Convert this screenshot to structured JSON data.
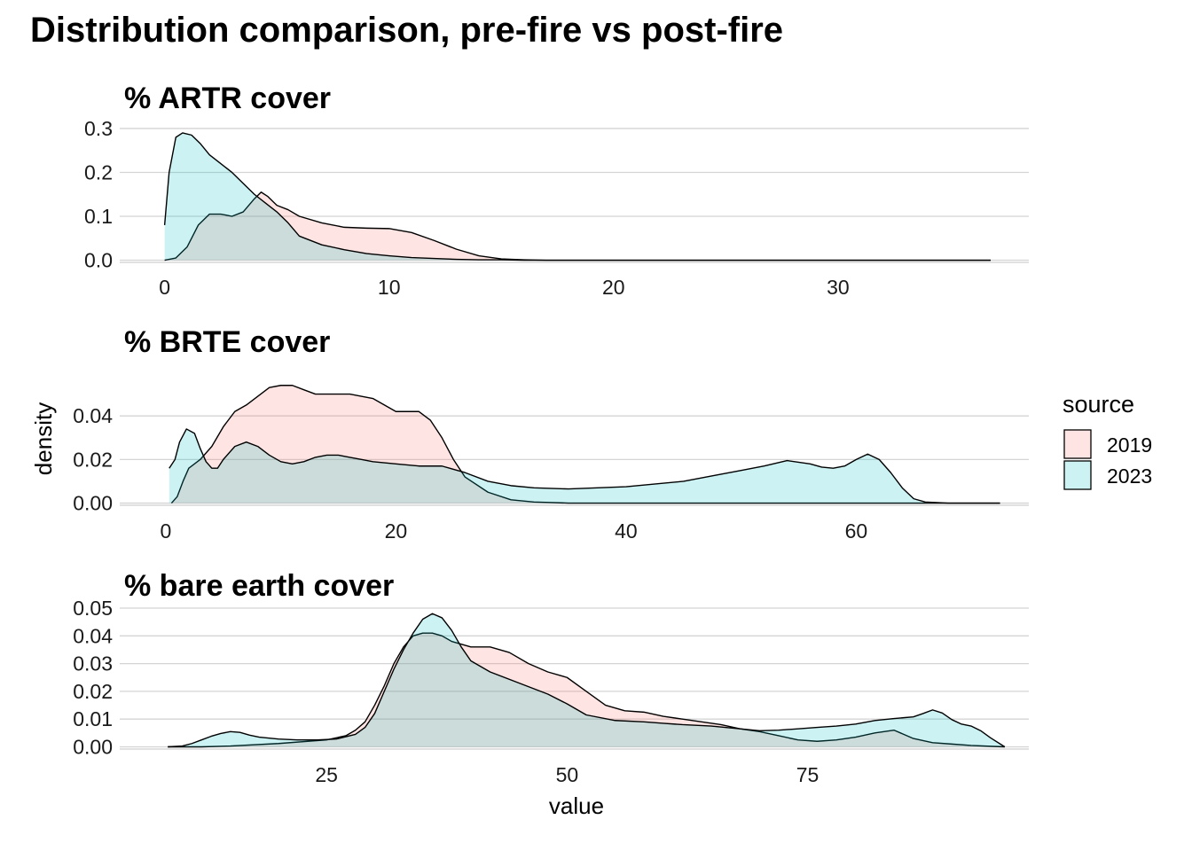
{
  "title": "Distribution comparison, pre-fire vs post-fire",
  "chart_data": {
    "type": "area",
    "title": "Distribution comparison, pre-fire vs post-fire",
    "ylabel": "density",
    "xlabel": "value",
    "legend": {
      "title": "source",
      "placement": "right",
      "entries": [
        {
          "name": "2019",
          "color": "#F8766D"
        },
        {
          "name": "2023",
          "color": "#00BFC4"
        }
      ]
    },
    "fill_opacity": 0.2,
    "grid": true,
    "panels": [
      {
        "title": "% ARTR cover",
        "xlim": [
          -2,
          38.5
        ],
        "ylim": [
          -0.005,
          0.31
        ],
        "xticks": [
          0,
          10,
          20,
          30
        ],
        "xtick_labels": [
          "0",
          "10",
          "20",
          "30"
        ],
        "yticks": [
          0,
          0.1,
          0.2,
          0.3
        ],
        "ytick_labels": [
          "0.0",
          "0.1",
          "0.2",
          "0.3"
        ],
        "series": [
          {
            "name": "2019",
            "x": [
              0,
              0.5,
              1,
              1.5,
              2,
              2.5,
              3,
              3.5,
              4,
              4.3,
              4.6,
              5,
              5.5,
              6,
              7,
              8,
              9,
              10,
              11,
              12,
              13,
              14,
              15,
              16,
              17,
              20,
              25,
              30,
              36.8
            ],
            "y": [
              0,
              0.005,
              0.03,
              0.08,
              0.105,
              0.105,
              0.1,
              0.11,
              0.14,
              0.155,
              0.145,
              0.125,
              0.115,
              0.1,
              0.085,
              0.075,
              0.073,
              0.072,
              0.063,
              0.045,
              0.025,
              0.01,
              0.003,
              0.001,
              0,
              0,
              0,
              0,
              0
            ]
          },
          {
            "name": "2023",
            "x": [
              0,
              0.2,
              0.5,
              0.8,
              1.2,
              1.6,
              2,
              2.5,
              3,
              3.5,
              4,
              4.5,
              5,
              5.5,
              6,
              7,
              8,
              9,
              10,
              11,
              12,
              13,
              14,
              15,
              16,
              20,
              25,
              30,
              36.8
            ],
            "y": [
              0.08,
              0.2,
              0.28,
              0.29,
              0.285,
              0.265,
              0.24,
              0.22,
              0.2,
              0.175,
              0.15,
              0.13,
              0.11,
              0.085,
              0.055,
              0.035,
              0.024,
              0.015,
              0.01,
              0.006,
              0.004,
              0.002,
              0.001,
              0.001,
              0,
              0,
              0,
              0,
              0
            ]
          }
        ]
      },
      {
        "title": "% BRTE cover",
        "xlim": [
          -4,
          75
        ],
        "ylim": [
          -0.001,
          0.06
        ],
        "xticks": [
          0,
          20,
          40,
          60
        ],
        "xtick_labels": [
          "0",
          "20",
          "40",
          "60"
        ],
        "yticks": [
          0,
          0.02,
          0.04
        ],
        "ytick_labels": [
          "0.00",
          "0.02",
          "0.04"
        ],
        "series": [
          {
            "name": "2019",
            "x": [
              0.5,
              1,
              1.5,
              2,
              3,
              4,
              5,
              6,
              7,
              8,
              9,
              10,
              11,
              12,
              13,
              14,
              15,
              16,
              17,
              18,
              19,
              20,
              21,
              22,
              23,
              24,
              25,
              26,
              28,
              30,
              32,
              35,
              40,
              50,
              60,
              72.5
            ],
            "y": [
              0,
              0.003,
              0.01,
              0.016,
              0.02,
              0.026,
              0.035,
              0.042,
              0.045,
              0.049,
              0.053,
              0.054,
              0.054,
              0.052,
              0.05,
              0.05,
              0.05,
              0.05,
              0.049,
              0.048,
              0.045,
              0.042,
              0.042,
              0.042,
              0.038,
              0.03,
              0.02,
              0.012,
              0.005,
              0.0015,
              0.0005,
              0,
              0,
              0,
              0,
              0
            ]
          },
          {
            "name": "2023",
            "x": [
              0.3,
              0.8,
              1.2,
              1.8,
              2.5,
              3,
              3.5,
              4,
              4.5,
              5,
              6,
              7,
              8,
              9,
              10,
              11,
              12,
              13,
              14,
              15,
              16,
              17,
              18,
              20,
              22,
              24,
              26,
              28,
              30,
              32,
              35,
              40,
              45,
              48,
              50,
              52,
              54,
              56,
              57,
              58,
              59,
              60,
              61,
              62,
              63,
              64,
              65,
              66,
              68,
              72.5
            ],
            "y": [
              0.016,
              0.02,
              0.028,
              0.034,
              0.032,
              0.025,
              0.019,
              0.016,
              0.016,
              0.02,
              0.026,
              0.028,
              0.026,
              0.022,
              0.019,
              0.018,
              0.019,
              0.021,
              0.022,
              0.022,
              0.021,
              0.02,
              0.019,
              0.018,
              0.017,
              0.017,
              0.014,
              0.01,
              0.008,
              0.007,
              0.0065,
              0.0075,
              0.01,
              0.013,
              0.015,
              0.017,
              0.0195,
              0.018,
              0.0165,
              0.016,
              0.017,
              0.02,
              0.0225,
              0.02,
              0.014,
              0.007,
              0.002,
              0.0005,
              0,
              0
            ]
          }
        ]
      },
      {
        "title": "% bare earth cover",
        "xlim": [
          3.5,
          98
        ],
        "ylim": [
          -0.0008,
          0.05
        ],
        "xticks": [
          25,
          50,
          75
        ],
        "xtick_labels": [
          "25",
          "50",
          "75"
        ],
        "yticks": [
          0,
          0.01,
          0.02,
          0.03,
          0.04,
          0.05
        ],
        "ytick_labels": [
          "0.00",
          "0.01",
          "0.02",
          "0.03",
          "0.04",
          "0.05"
        ],
        "series": [
          {
            "name": "2019",
            "x": [
              8.5,
              12,
              15,
              20,
              25,
              27,
              28,
              29,
              30,
              31,
              32,
              33,
              34,
              35,
              36,
              37,
              38,
              39,
              40,
              42,
              44,
              46,
              48,
              50,
              52,
              54,
              56,
              58,
              60,
              62,
              64,
              66,
              68,
              70,
              72,
              74,
              76,
              78,
              80,
              82,
              84,
              86,
              88,
              90,
              92,
              94,
              95.5
            ],
            "y": [
              0,
              0,
              0.0003,
              0.0012,
              0.0025,
              0.004,
              0.006,
              0.009,
              0.015,
              0.022,
              0.03,
              0.036,
              0.04,
              0.041,
              0.041,
              0.04,
              0.038,
              0.037,
              0.036,
              0.036,
              0.034,
              0.03,
              0.027,
              0.025,
              0.02,
              0.015,
              0.013,
              0.0125,
              0.011,
              0.01,
              0.009,
              0.008,
              0.0065,
              0.0055,
              0.004,
              0.0025,
              0.002,
              0.0025,
              0.0035,
              0.005,
              0.006,
              0.003,
              0.0015,
              0.001,
              0.0005,
              0.0002,
              0
            ]
          },
          {
            "name": "2023",
            "x": [
              8.5,
              10,
              11,
              12,
              13,
              14,
              15,
              16,
              17,
              18,
              20,
              22,
              24,
              26,
              28,
              29,
              30,
              31,
              32,
              33,
              34,
              35,
              36,
              37,
              38,
              39,
              40,
              42,
              45,
              48,
              50,
              52,
              55,
              58,
              60,
              62,
              65,
              68,
              70,
              72,
              74,
              76,
              78,
              80,
              82,
              84,
              85,
              86,
              87,
              88,
              89,
              90,
              91,
              92,
              93,
              94,
              95.5
            ],
            "y": [
              0,
              0.0003,
              0.0012,
              0.0025,
              0.0038,
              0.0048,
              0.0055,
              0.0052,
              0.0042,
              0.0035,
              0.0028,
              0.0025,
              0.0025,
              0.0028,
              0.0045,
              0.007,
              0.012,
              0.02,
              0.028,
              0.035,
              0.041,
              0.046,
              0.048,
              0.0465,
              0.042,
              0.036,
              0.031,
              0.027,
              0.023,
              0.019,
              0.0155,
              0.0115,
              0.0095,
              0.009,
              0.0085,
              0.008,
              0.0075,
              0.0065,
              0.0058,
              0.006,
              0.0065,
              0.007,
              0.0075,
              0.0082,
              0.0095,
              0.0102,
              0.0105,
              0.0108,
              0.012,
              0.0133,
              0.0122,
              0.0098,
              0.0082,
              0.0075,
              0.0058,
              0.0033,
              0
            ]
          }
        ]
      }
    ]
  }
}
